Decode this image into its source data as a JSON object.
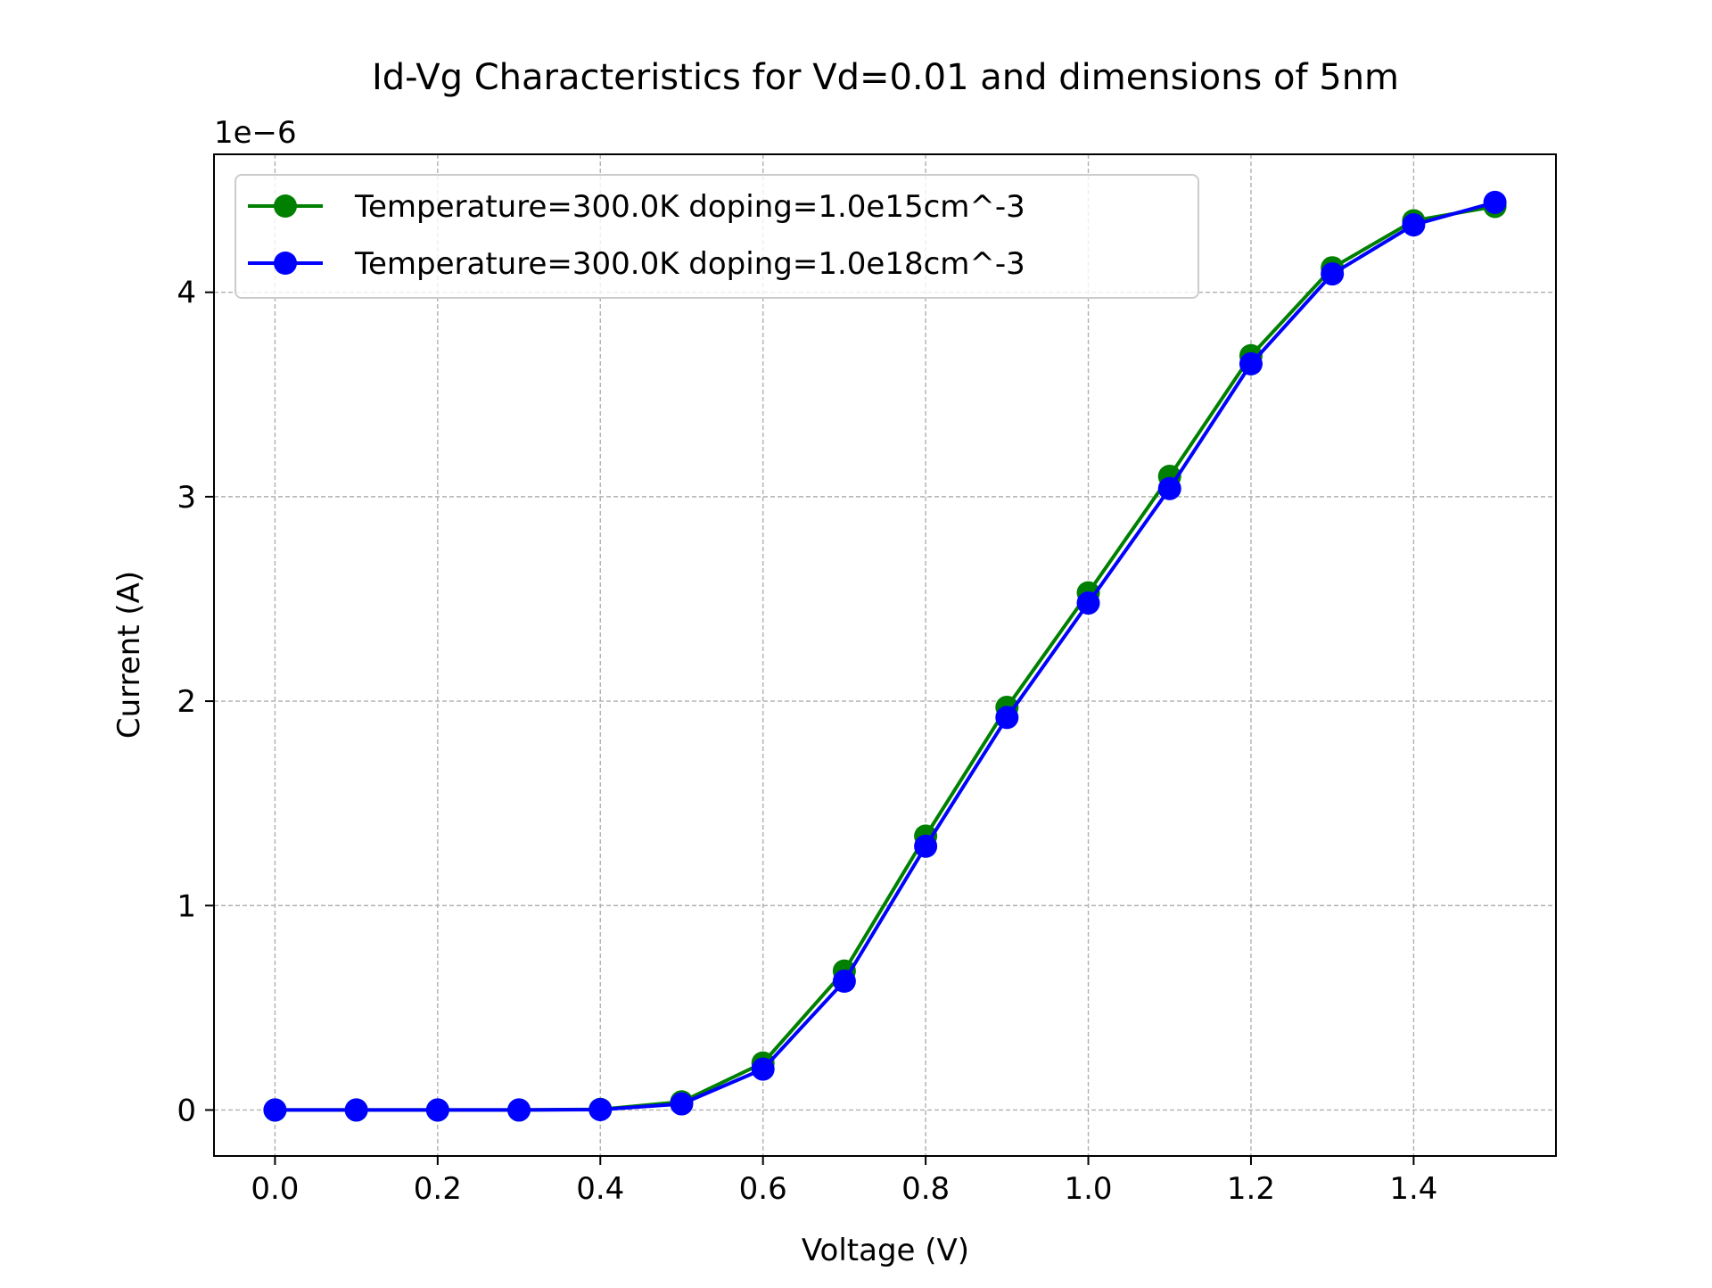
{
  "chart_data": {
    "type": "line",
    "title": "Id-Vg Characteristics for Vd=0.01 and dimensions of 5nm",
    "xlabel": "Voltage (V)",
    "ylabel": "Current (A)",
    "y_offset_label": "1e−6",
    "xlim": [
      -0.075,
      1.575
    ],
    "ylim": [
      -0.225,
      4.675
    ],
    "x_ticks": [
      0.0,
      0.2,
      0.4,
      0.6,
      0.8,
      1.0,
      1.2,
      1.4
    ],
    "x_tick_labels": [
      "0.0",
      "0.2",
      "0.4",
      "0.6",
      "0.8",
      "1.0",
      "1.2",
      "1.4"
    ],
    "y_ticks": [
      0,
      1,
      2,
      3,
      4
    ],
    "y_tick_labels": [
      "0",
      "1",
      "2",
      "3",
      "4"
    ],
    "grid": true,
    "legend_position": "top-left",
    "x": [
      0.0,
      0.1,
      0.2,
      0.3,
      0.4,
      0.5,
      0.6,
      0.7,
      0.8,
      0.9,
      1.0,
      1.1,
      1.2,
      1.3,
      1.4,
      1.5
    ],
    "series": [
      {
        "name": "Temperature=300.0K doping=1.0e15cm^-3",
        "color": "#008000",
        "marker": "circle",
        "values": [
          0.0,
          0.0,
          0.0,
          0.0,
          0.003,
          0.04,
          0.23,
          0.68,
          1.34,
          1.97,
          2.53,
          3.1,
          3.69,
          4.12,
          4.35,
          4.42
        ]
      },
      {
        "name": "Temperature=300.0K doping=1.0e18cm^-3",
        "color": "#0000ff",
        "marker": "circle",
        "values": [
          0.0,
          0.0,
          0.0,
          0.0,
          0.002,
          0.03,
          0.2,
          0.63,
          1.29,
          1.92,
          2.48,
          3.04,
          3.65,
          4.09,
          4.33,
          4.44
        ]
      }
    ]
  }
}
